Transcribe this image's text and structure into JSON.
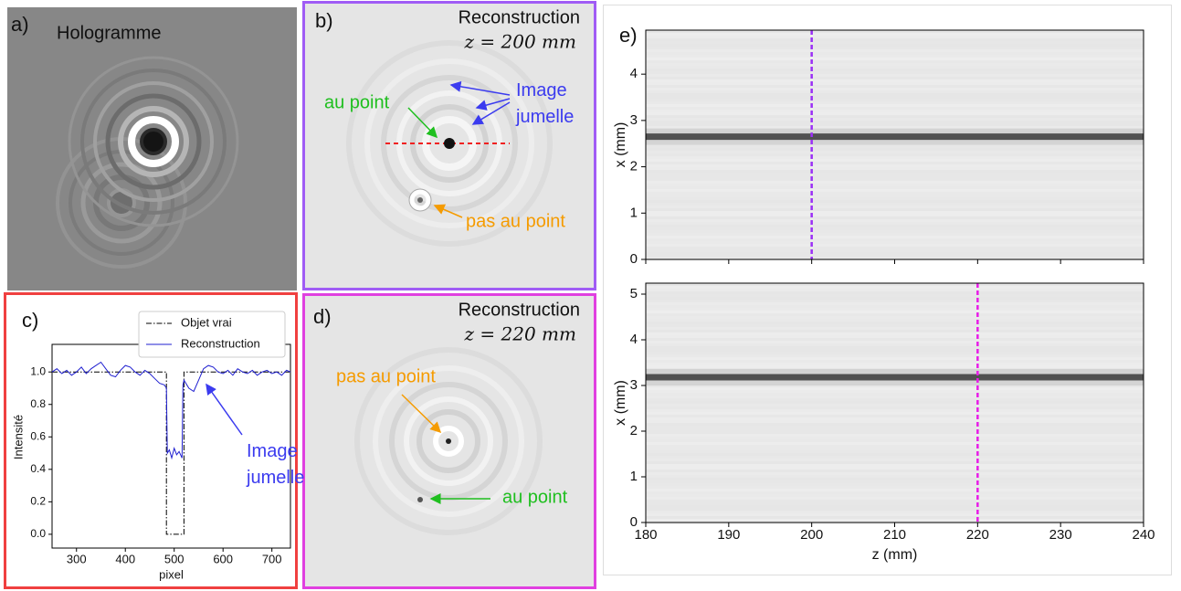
{
  "chart_data": [
    {
      "type": "image",
      "panel": "a)",
      "title": "Hologramme"
    },
    {
      "type": "image",
      "panel": "b)",
      "title": "Reconstruction",
      "subtitle": "z = 200 mm",
      "annotations": [
        {
          "text": "au point",
          "color": "#1fbf1f"
        },
        {
          "lines": [
            "Image",
            "jumelle"
          ],
          "color": "#3b3bef"
        },
        {
          "text": "pas au point",
          "color": "#f59b00"
        }
      ]
    },
    {
      "type": "line",
      "panel": "c)",
      "xlabel": "pixel",
      "ylabel": "Intensité",
      "xlim": [
        250,
        738
      ],
      "ylim": [
        -0.085,
        1.17
      ],
      "xticks": [
        300,
        400,
        500,
        600,
        700
      ],
      "yticks": [
        {
          "value": 0,
          "label": "0.0"
        },
        {
          "value": 0.2,
          "label": "0.2"
        },
        {
          "value": 0.4,
          "label": "0.4"
        },
        {
          "value": 0.6,
          "label": "0.6"
        },
        {
          "value": 0.8,
          "label": "0.8"
        },
        {
          "value": 1,
          "label": "1.0"
        }
      ],
      "legend": "upper right",
      "series": [
        {
          "name": "Objet vrai",
          "color": "#000000",
          "style": "dashdot",
          "x": [
            250,
            484,
            484,
            520,
            520,
            738
          ],
          "values": [
            1,
            1,
            0,
            0,
            1,
            1
          ]
        },
        {
          "name": "Reconstruction",
          "color": "#1f1fd0",
          "style": "solid",
          "x": [
            250,
            260,
            270,
            280,
            290,
            300,
            310,
            320,
            330,
            340,
            350,
            360,
            370,
            380,
            390,
            400,
            410,
            420,
            430,
            440,
            450,
            460,
            470,
            480,
            484,
            486,
            490,
            495,
            500,
            505,
            510,
            516,
            518,
            520,
            530,
            540,
            550,
            560,
            570,
            580,
            590,
            600,
            610,
            620,
            630,
            640,
            650,
            660,
            670,
            680,
            690,
            700,
            710,
            720,
            730,
            738
          ],
          "values": [
            1.0,
            1.02,
            0.99,
            1.01,
            0.98,
            1.0,
            1.03,
            0.99,
            1.02,
            1.04,
            1.06,
            1.02,
            0.98,
            0.97,
            1.01,
            1.04,
            1.03,
            1.0,
            0.98,
            1.01,
            0.99,
            0.96,
            0.93,
            0.92,
            0.9,
            0.5,
            0.52,
            0.47,
            0.53,
            0.49,
            0.51,
            0.47,
            0.92,
            0.95,
            0.9,
            0.88,
            0.95,
            1.02,
            1.04,
            1.03,
            1.0,
            0.99,
            1.01,
            0.98,
            1.02,
            1.0,
            0.99,
            1.01,
            0.98,
            1.0,
            1.01,
            0.99,
            1.0,
            0.98,
            1.01,
            1.0
          ]
        }
      ],
      "annotations": [
        {
          "lines": [
            "Image",
            "jumelle"
          ],
          "color": "#3b3bef"
        }
      ]
    },
    {
      "type": "image",
      "panel": "d)",
      "title": "Reconstruction",
      "subtitle": "z = 220 mm",
      "annotations": [
        {
          "text": "pas au point",
          "color": "#f59b00"
        },
        {
          "text": "au point",
          "color": "#1fbf1f"
        }
      ]
    },
    {
      "type": "heatmap",
      "panel": "e)",
      "ylabel": "x (mm)",
      "xlim": [
        180,
        240
      ],
      "ylim": [
        0,
        4.95
      ],
      "xticks": [
        180,
        190,
        200,
        210,
        220,
        230,
        240
      ],
      "show_xtick_labels": false,
      "yticks": [
        0,
        1,
        2,
        3,
        4
      ],
      "trace_x": 2.65,
      "marker_z": 200,
      "marker_color": "#9b30f5"
    },
    {
      "type": "heatmap",
      "ylabel": "x (mm)",
      "xlabel": "z (mm)",
      "xlim": [
        180,
        240
      ],
      "ylim": [
        0,
        5.24
      ],
      "xticks": [
        180,
        190,
        200,
        210,
        220,
        230,
        240
      ],
      "show_xtick_labels": true,
      "yticks": [
        0,
        1,
        2,
        3,
        4,
        5
      ],
      "trace_x": 3.18,
      "marker_z": 220,
      "marker_color": "#e81ce8"
    }
  ]
}
